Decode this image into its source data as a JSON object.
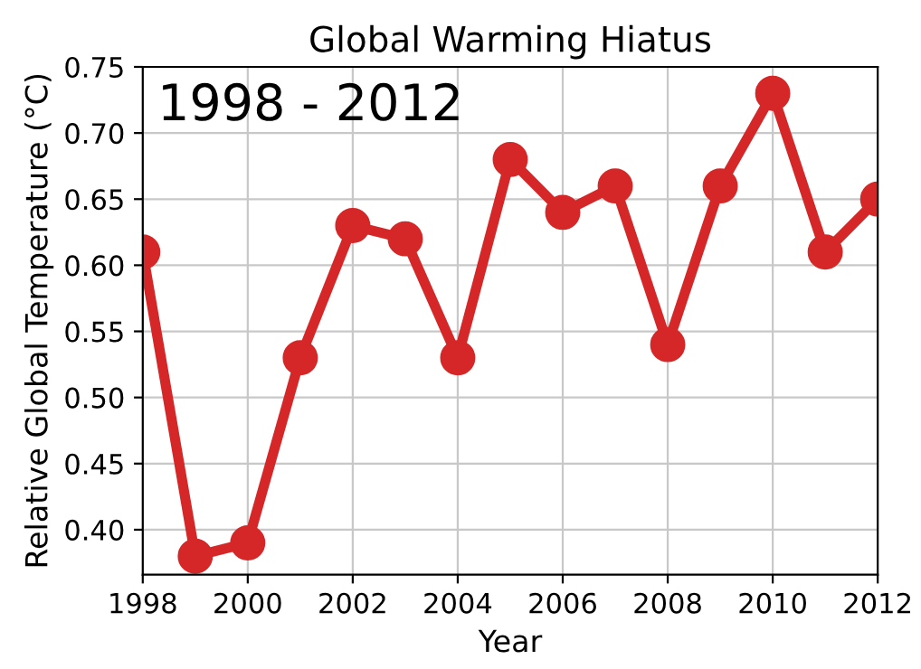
{
  "chart_data": {
    "type": "line",
    "title": "Global Warming Hiatus",
    "xlabel": "Year",
    "ylabel": "Relative Global Temperature (°C)",
    "annotations": [
      "1998 - 2012"
    ],
    "x": [
      1998,
      1999,
      2000,
      2001,
      2002,
      2003,
      2004,
      2005,
      2006,
      2007,
      2008,
      2009,
      2010,
      2011,
      2012
    ],
    "series": [
      {
        "color": "#d62728",
        "values": [
          0.61,
          0.38,
          0.39,
          0.53,
          0.63,
          0.62,
          0.53,
          0.68,
          0.64,
          0.66,
          0.54,
          0.66,
          0.73,
          0.61,
          0.65
        ]
      }
    ],
    "xlim": [
      1998,
      2012
    ],
    "xticks": [
      1998,
      2000,
      2002,
      2004,
      2006,
      2008,
      2010,
      2012
    ],
    "ylim": [
      0.366,
      0.75
    ],
    "yticks": [
      {
        "value": 0.4,
        "label": "0.40"
      },
      0.45,
      {
        "value": 0.5,
        "label": "0.50"
      },
      0.55,
      {
        "value": 0.6,
        "label": "0.60"
      },
      0.65,
      {
        "value": 0.7,
        "label": "0.70"
      },
      0.75
    ],
    "grid": true,
    "marker": "circle",
    "line_style": "solid",
    "legend": false
  }
}
